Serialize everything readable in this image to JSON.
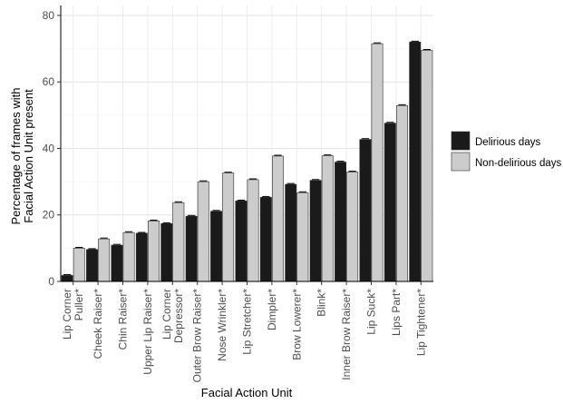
{
  "chart_data": {
    "type": "bar",
    "xlabel": "Facial Action Unit",
    "ylabel": [
      "Percentage of frames with",
      "Facial Action Unit present"
    ],
    "ylim": [
      0,
      83
    ],
    "yticks": [
      0,
      20,
      40,
      60,
      80
    ],
    "grid": true,
    "legend_position": "right",
    "categories": [
      [
        "Lip Corner",
        "Puller*"
      ],
      [
        "Cheek Raiser*"
      ],
      [
        "Chin Raiser*"
      ],
      [
        "Upper Lip Raiser*"
      ],
      [
        "Lip Corner",
        "Depressor*"
      ],
      [
        "Outer Brow Raiser*"
      ],
      [
        "Nose Wrinkler*"
      ],
      [
        "Lip Stretcher*"
      ],
      [
        "Dimpler*"
      ],
      [
        "Brow Lowerer*"
      ],
      [
        "Blink*"
      ],
      [
        "Inner Brow Raiser*"
      ],
      [
        "Lip Suck*"
      ],
      [
        "Lips Part*"
      ],
      [
        "Lip Tightener*"
      ]
    ],
    "series": [
      {
        "name": "Delirious days",
        "color": "#1a1a1a",
        "values": [
          1.8,
          9.6,
          10.9,
          14.5,
          17.4,
          19.6,
          21.1,
          24.2,
          25.3,
          29.2,
          30.4,
          35.9,
          42.7,
          47.6,
          72.0
        ]
      },
      {
        "name": "Non-delirious days",
        "color": "#cccccc",
        "values": [
          10.0,
          12.8,
          14.7,
          18.2,
          23.7,
          30.0,
          32.6,
          30.6,
          37.7,
          26.7,
          37.8,
          32.9,
          71.5,
          52.9,
          69.5
        ]
      }
    ]
  }
}
